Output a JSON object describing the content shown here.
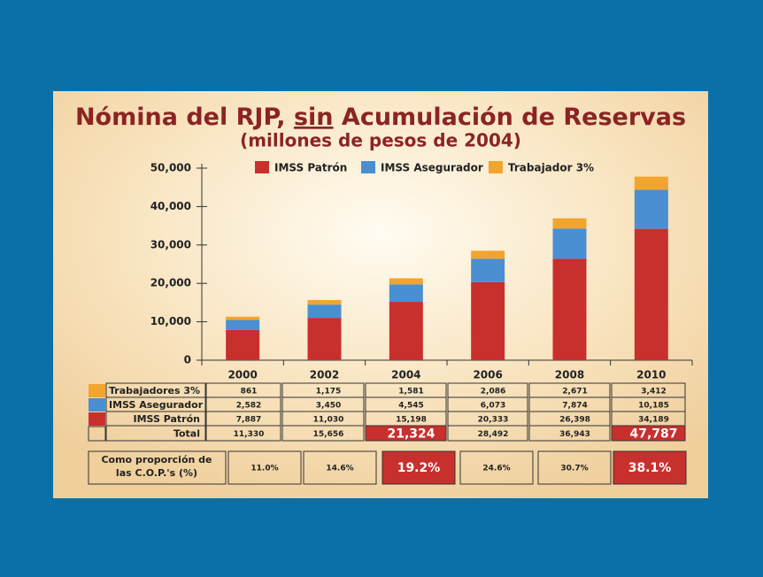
{
  "chart_data": {
    "type": "stacked_bar",
    "title": {
      "before": "Nómina del RJP,",
      "underlined": "sin",
      "after": "Acumulación de Reservas"
    },
    "subtitle": "(millones de pesos de 2004)",
    "categories": [
      "2000",
      "2002",
      "2004",
      "2006",
      "2008",
      "2010"
    ],
    "series": [
      {
        "name": "IMSS Patrón",
        "color": "#c8302e",
        "values": [
          7887,
          11030,
          15198,
          20333,
          26398,
          34189
        ]
      },
      {
        "name": "IMSS Asegurador",
        "color": "#4a8fd2",
        "values": [
          2582,
          3450,
          4545,
          6073,
          7874,
          10185
        ]
      },
      {
        "name": "Trabajador 3%",
        "color": "#f2a52e",
        "values": [
          861,
          1175,
          1581,
          2086,
          2671,
          3412
        ]
      }
    ],
    "ylim": [
      0,
      50000
    ],
    "yticks": [
      0,
      {
        "value": 10000,
        "label": "10,000"
      },
      {
        "value": 20000,
        "label": "20,000"
      },
      {
        "value": 30000,
        "label": "30,000"
      },
      {
        "value": 40000,
        "label": "40,000"
      },
      {
        "value": 50000,
        "label": "50,000"
      }
    ],
    "legend": "top"
  },
  "table": {
    "rows": [
      {
        "label": "Trabajadores 3%",
        "cells": [
          "861",
          "1,175",
          "1,581",
          "2,086",
          "2,671",
          "3,412"
        ]
      },
      {
        "label": "IMSS Asegurador",
        "cells": [
          "2,582",
          "3,450",
          "4,545",
          "6,073",
          "7,874",
          "10,185"
        ]
      },
      {
        "label": "IMSS Patrón",
        "cells": [
          "7,887",
          "11,030",
          "15,198",
          "20,333",
          "26,398",
          "34,189"
        ]
      },
      {
        "label": "Total",
        "cells": [
          "11,330",
          "15,656",
          "21,324",
          "28,492",
          "36,943",
          "47,787"
        ]
      }
    ],
    "proportion": {
      "label": [
        "Como proporción de",
        "las C.O.P.'s (%)"
      ],
      "cells": [
        "11.0%",
        "14.6%",
        "19.2%",
        "24.6%",
        "30.7%",
        "38.1%"
      ]
    },
    "highlight_columns": [
      2,
      5
    ]
  }
}
